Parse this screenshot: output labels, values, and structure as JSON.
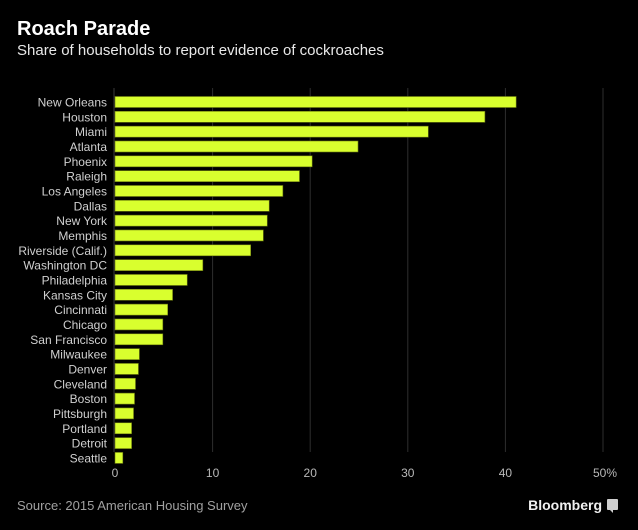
{
  "chart_data": {
    "type": "bar",
    "orientation": "horizontal",
    "title": "Roach Parade",
    "subtitle": "Share of households to report evidence of cockroaches",
    "xlabel": "",
    "ylabel": "",
    "xlim": [
      0,
      50
    ],
    "x_ticks": [
      0,
      10,
      20,
      30,
      40,
      50
    ],
    "x_tick_labels": [
      "0",
      "10",
      "20",
      "30",
      "40",
      "50%"
    ],
    "grid": true,
    "bar_color": "#d9ff2e",
    "categories": [
      "New Orleans",
      "Houston",
      "Miami",
      "Atlanta",
      "Phoenix",
      "Raleigh",
      "Los Angeles",
      "Dallas",
      "New York",
      "Memphis",
      "Riverside (Calif.)",
      "Washington DC",
      "Philadelphia",
      "Kansas City",
      "Cincinnati",
      "Chicago",
      "San Francisco",
      "Milwaukee",
      "Denver",
      "Cleveland",
      "Boston",
      "Pittsburgh",
      "Portland",
      "Detroit",
      "Seattle"
    ],
    "values": [
      41.1,
      37.9,
      32.1,
      24.9,
      20.2,
      18.9,
      17.2,
      15.8,
      15.6,
      15.2,
      13.9,
      9.0,
      7.4,
      5.9,
      5.4,
      4.9,
      4.9,
      2.5,
      2.4,
      2.1,
      2.0,
      1.9,
      1.7,
      1.7,
      0.8
    ],
    "unit": "%"
  },
  "footer": {
    "source": "Source: 2015 American Housing Survey",
    "brand": "Bloomberg",
    "brand_icon": "bloomberg-chart-icon"
  }
}
